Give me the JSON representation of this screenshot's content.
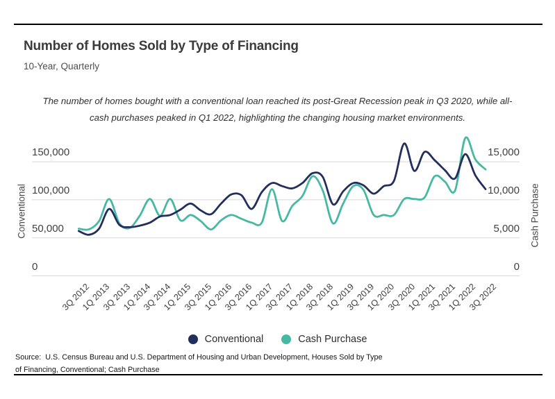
{
  "header": {
    "title": "Number of Homes Sold by Type of Financing",
    "subtitle": "10-Year, Quarterly"
  },
  "annotation": {
    "lines": [
      "The number of homes bought with a conventional loan reached its post-Great Recession peak in Q3 2020, while all-",
      "cash purchases peaked in Q1 2022, highlighting the changing housing market environments."
    ]
  },
  "chart_data": {
    "type": "line",
    "title": "Number of Homes Sold by Type of Financing",
    "subtitle": "10-Year, Quarterly",
    "grid": true,
    "legend_position": "bottom-center",
    "x": [
      "3Q 2012",
      "4Q 2012",
      "1Q 2013",
      "2Q 2013",
      "3Q 2013",
      "4Q 2013",
      "1Q 2014",
      "2Q 2014",
      "3Q 2014",
      "4Q 2014",
      "1Q 2015",
      "2Q 2015",
      "3Q 2015",
      "4Q 2015",
      "1Q 2016",
      "2Q 2016",
      "3Q 2016",
      "4Q 2016",
      "1Q 2017",
      "2Q 2017",
      "3Q 2017",
      "4Q 2017",
      "1Q 2018",
      "2Q 2018",
      "3Q 2018",
      "4Q 2018",
      "1Q 2019",
      "2Q 2019",
      "3Q 2019",
      "4Q 2019",
      "1Q 2020",
      "2Q 2020",
      "3Q 2020",
      "4Q 2020",
      "1Q 2021",
      "2Q 2021",
      "3Q 2021",
      "4Q 2021",
      "1Q 2022",
      "2Q 2022",
      "3Q 2022"
    ],
    "x_labels_shown": [
      "3Q 2012",
      "1Q 2013",
      "3Q 2013",
      "1Q 2014",
      "3Q 2014",
      "1Q 2015",
      "3Q 2015",
      "1Q 2016",
      "3Q 2016",
      "1Q 2017",
      "3Q 2017",
      "1Q 2018",
      "3Q 2018",
      "1Q 2019",
      "3Q 2019",
      "1Q 2020",
      "3Q 2020",
      "1Q 2021",
      "3Q 2021",
      "1Q 2022",
      "3Q 2022"
    ],
    "series": [
      {
        "name": "Conventional",
        "axis": "left",
        "color": "#222f5d",
        "values": [
          59000,
          54000,
          62000,
          88000,
          67000,
          64000,
          66000,
          70000,
          78000,
          80000,
          87000,
          95000,
          86000,
          81000,
          95000,
          107000,
          106000,
          88000,
          110000,
          122000,
          118000,
          115000,
          122000,
          135000,
          130000,
          94000,
          111000,
          122000,
          119000,
          108000,
          118000,
          125000,
          174000,
          138000,
          163000,
          152000,
          139000,
          128000,
          160000,
          132000,
          114000
        ]
      },
      {
        "name": "Cash Purchase",
        "axis": "right",
        "color": "#47b8a2",
        "values": [
          6200,
          6100,
          7200,
          10100,
          6900,
          6300,
          7900,
          10100,
          7900,
          10100,
          7300,
          8000,
          7200,
          6100,
          7300,
          8000,
          7500,
          7000,
          7000,
          11400,
          7200,
          9200,
          10500,
          13100,
          11200,
          6900,
          9500,
          11800,
          11300,
          8000,
          8000,
          8000,
          10100,
          10100,
          10300,
          13100,
          12400,
          11200,
          18100,
          15300,
          14000
        ]
      }
    ],
    "left_axis": {
      "label": "Conventional",
      "ticks": [
        "150,000",
        "100,000",
        "50,000",
        "0"
      ],
      "range": [
        0,
        185000
      ]
    },
    "right_axis": {
      "label": "Cash Purchase",
      "ticks": [
        "15,000",
        "10,000",
        "5,000",
        "0"
      ],
      "range": [
        0,
        18500
      ]
    }
  },
  "legend": {
    "items": [
      {
        "label": "Conventional",
        "color": "#222f5d"
      },
      {
        "label": "Cash Purchase",
        "color": "#47b8a2"
      }
    ]
  },
  "source": {
    "line1": "Source:  U.S. Census Bureau and U.S. Department of Housing and Urban Development, Houses Sold by Type",
    "line2": "of Financing, Conventional; Cash Purchase"
  },
  "colors": {
    "conventional": "#222f5d",
    "cash_purchase": "#47b8a2",
    "gridline": "#d8d8d8",
    "rule": "#000000"
  }
}
